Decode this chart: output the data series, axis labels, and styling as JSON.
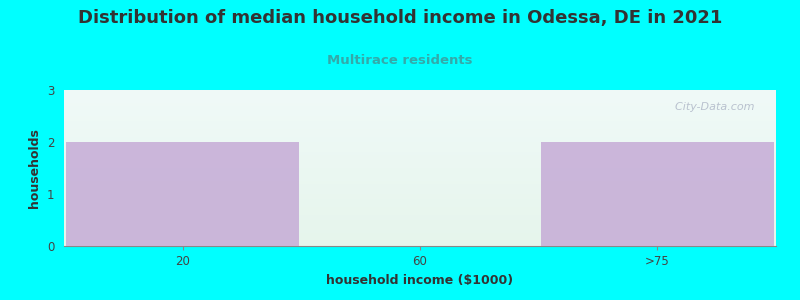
{
  "title": "Distribution of median household income in Odessa, DE in 2021",
  "subtitle": "Multirace residents",
  "title_color": "#333333",
  "subtitle_color": "#33aaaa",
  "xlabel": "household income ($1000)",
  "ylabel": "households",
  "background_color": "#00ffff",
  "plot_bg_top": "#f0faf8",
  "plot_bg_bottom": "#e6f5ec",
  "bar_categories": [
    "20",
    "60",
    ">75"
  ],
  "bar_values": [
    2,
    0,
    2
  ],
  "bar_color": "#c4a8d5",
  "ylim": [
    0,
    3
  ],
  "yticks": [
    0,
    1,
    2,
    3
  ],
  "title_fontsize": 13,
  "subtitle_fontsize": 9.5,
  "axis_label_fontsize": 9,
  "tick_fontsize": 8.5,
  "watermark": "  City-Data.com",
  "watermark_color": "#b0b8c8"
}
